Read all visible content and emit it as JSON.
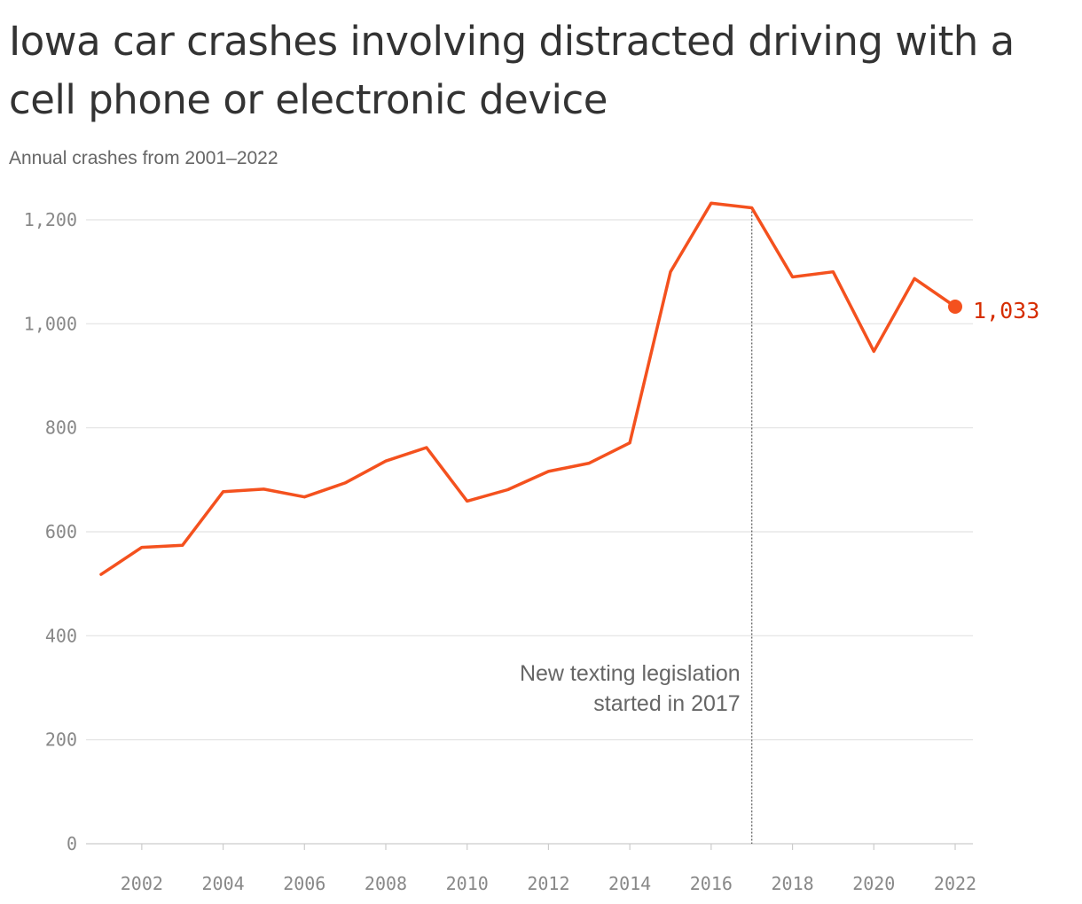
{
  "chart_data": {
    "type": "line",
    "title": "Iowa car crashes involving distracted driving with a cell phone or electronic device",
    "subtitle": "Annual crashes from 2001–2022",
    "xlabel": "",
    "ylabel": "",
    "ylim": [
      0,
      1200
    ],
    "xlim": [
      2001,
      2022
    ],
    "y_ticks": [
      0,
      200,
      400,
      600,
      800,
      1000,
      1200
    ],
    "y_tick_labels": [
      "0",
      "200",
      "400",
      "600",
      "800",
      "1,000",
      "1,200"
    ],
    "x_ticks": [
      2002,
      2004,
      2006,
      2008,
      2010,
      2012,
      2014,
      2016,
      2018,
      2020,
      2022
    ],
    "x_tick_labels": [
      "2002",
      "2004",
      "2006",
      "2008",
      "2010",
      "2012",
      "2014",
      "2016",
      "2018",
      "2020",
      "2022"
    ],
    "grid": true,
    "series": [
      {
        "color": "#f4511e",
        "x": [
          2001,
          2002,
          2003,
          2004,
          2005,
          2006,
          2007,
          2008,
          2009,
          2010,
          2011,
          2012,
          2013,
          2014,
          2015,
          2016,
          2017,
          2018,
          2019,
          2020,
          2021,
          2022
        ],
        "values": [
          518,
          570,
          574,
          677,
          682,
          667,
          694,
          736,
          762,
          659,
          681,
          716,
          732,
          771,
          1100,
          1232,
          1223,
          1090,
          1100,
          947,
          1087,
          1033
        ]
      }
    ],
    "end_label": {
      "x": 2022,
      "value": 1033,
      "text": "1,033",
      "color": "#d62d00"
    },
    "annotation": {
      "x": 2017,
      "lines": [
        "New texting legislation",
        "started in 2017"
      ]
    }
  }
}
